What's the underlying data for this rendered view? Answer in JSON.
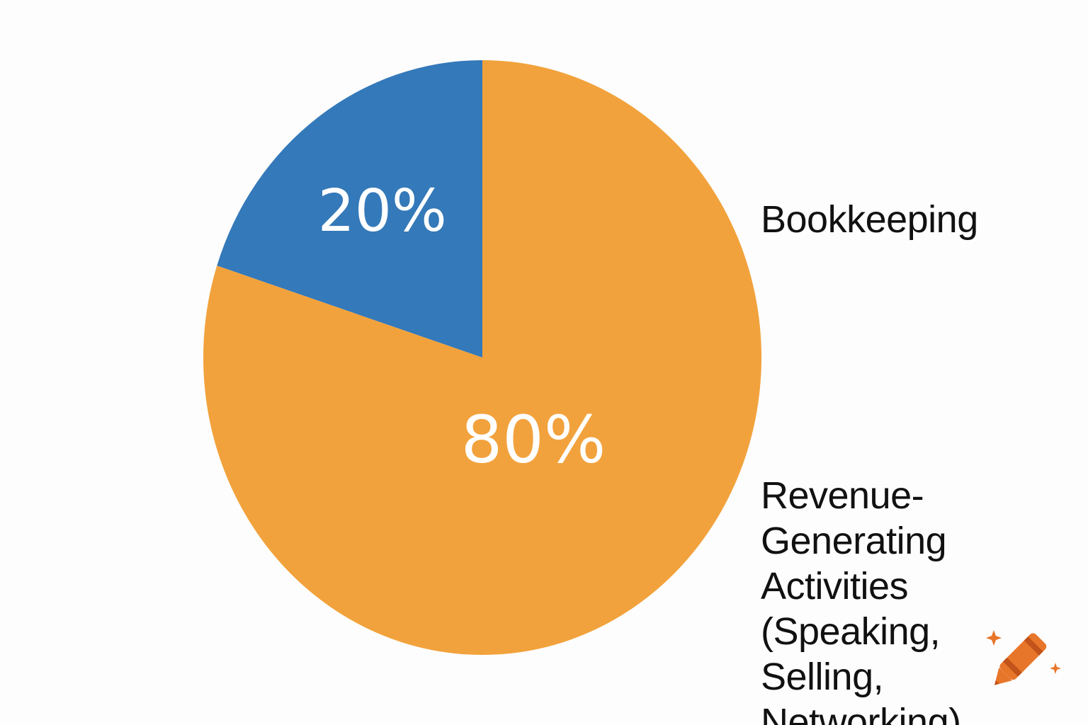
{
  "chart_data": {
    "type": "pie",
    "title": "",
    "slices": [
      {
        "label": "Bookkeeping",
        "value": 20,
        "value_label": "20%",
        "color": "#3479b9"
      },
      {
        "label": "Revenue-Generating Activities (Speaking, Selling, Networking)",
        "value": 80,
        "value_label": "80%",
        "color": "#f2a23c"
      }
    ],
    "start_angle_deg": 0,
    "direction": "counterclockwise",
    "legend_placement": "right",
    "legend": [
      {
        "text": "Bookkeeping"
      },
      {
        "text": "Revenue-Generating Activities (Speaking, Selling, Networking)"
      }
    ]
  },
  "watermark": {
    "icon": "crayon-icon",
    "colors": [
      "#e8762a",
      "#c2531a"
    ]
  }
}
